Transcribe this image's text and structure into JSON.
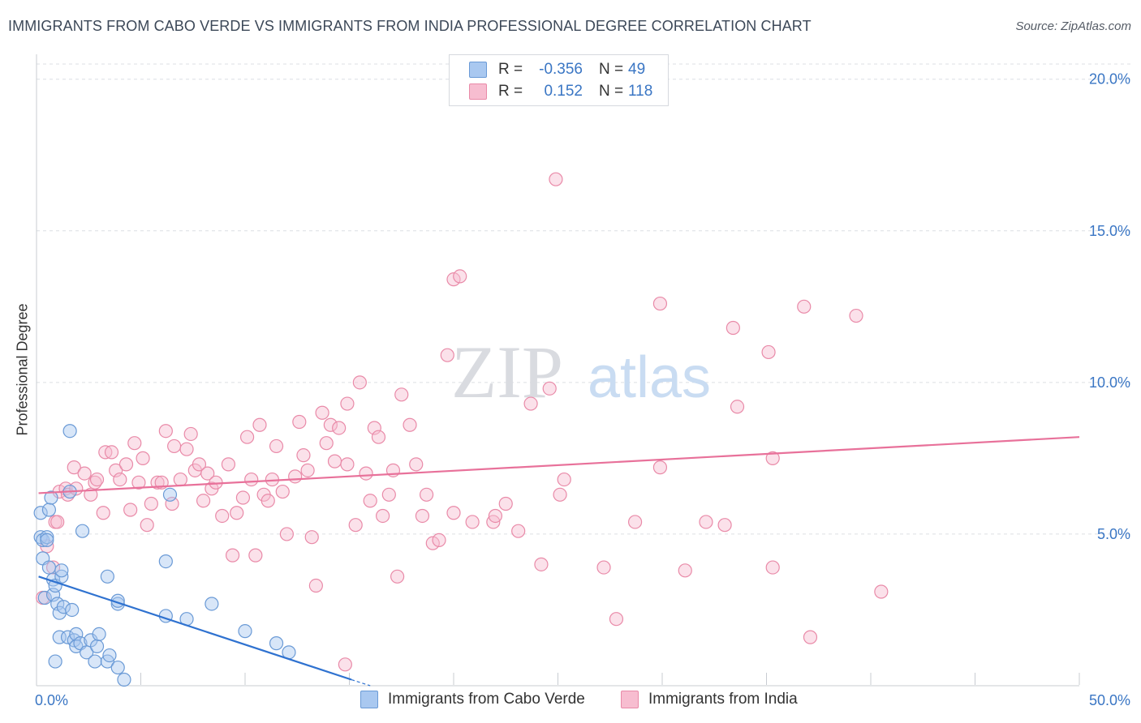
{
  "title": "IMMIGRANTS FROM CABO VERDE VS IMMIGRANTS FROM INDIA PROFESSIONAL DEGREE CORRELATION CHART",
  "source": "Source: ZipAtlas.com",
  "watermark": {
    "zip": "ZIP",
    "atlas": "atlas"
  },
  "legend": {
    "r_label": "R =",
    "n_label": "N =",
    "rows": [
      {
        "r": "-0.356",
        "n": "49",
        "fill": "#a9c8f0",
        "stroke": "#6a9ad6"
      },
      {
        "r": "0.152",
        "n": "118",
        "fill": "#f7bdd0",
        "stroke": "#e98aa8"
      }
    ]
  },
  "chart_data": {
    "type": "scatter",
    "xlabel": "",
    "ylabel": "Professional Degree",
    "xlim": [
      0,
      50
    ],
    "ylim": [
      0,
      20.5
    ],
    "x_tick_labels": [
      "0.0%",
      "50.0%"
    ],
    "y_ticks": [
      5,
      10,
      15,
      20
    ],
    "y_tick_labels": [
      "5.0%",
      "10.0%",
      "15.0%",
      "20.0%"
    ],
    "grid": true,
    "series": [
      {
        "name": "Immigrants from Cabo Verde",
        "color": "#6a9ad6",
        "fill": "#a9c8f0",
        "line_color": "#2f72d0",
        "trend": {
          "x": [
            0.1,
            15.1
          ],
          "y": [
            3.6,
            0.2
          ]
        },
        "trend_ext": {
          "x": [
            15.1,
            16.0
          ],
          "y": [
            0.2,
            0.0
          ]
        },
        "points": [
          [
            0.2,
            5.7
          ],
          [
            0.2,
            4.9
          ],
          [
            0.3,
            4.8
          ],
          [
            0.3,
            4.2
          ],
          [
            0.4,
            2.9
          ],
          [
            0.5,
            4.9
          ],
          [
            0.5,
            4.8
          ],
          [
            0.6,
            3.9
          ],
          [
            0.6,
            5.8
          ],
          [
            0.7,
            6.2
          ],
          [
            0.8,
            3.5
          ],
          [
            0.8,
            3.0
          ],
          [
            0.9,
            3.3
          ],
          [
            0.9,
            0.8
          ],
          [
            1.0,
            2.7
          ],
          [
            1.1,
            2.4
          ],
          [
            1.1,
            1.6
          ],
          [
            1.2,
            3.6
          ],
          [
            1.2,
            3.8
          ],
          [
            1.3,
            2.6
          ],
          [
            1.5,
            1.6
          ],
          [
            1.6,
            6.4
          ],
          [
            1.7,
            2.5
          ],
          [
            1.8,
            1.5
          ],
          [
            1.9,
            1.7
          ],
          [
            1.9,
            1.3
          ],
          [
            2.1,
            1.4
          ],
          [
            2.2,
            5.1
          ],
          [
            2.4,
            1.1
          ],
          [
            2.6,
            1.5
          ],
          [
            2.8,
            0.8
          ],
          [
            2.9,
            1.3
          ],
          [
            3.0,
            1.7
          ],
          [
            3.4,
            0.8
          ],
          [
            3.4,
            3.6
          ],
          [
            3.5,
            1.0
          ],
          [
            3.9,
            2.7
          ],
          [
            3.9,
            2.8
          ],
          [
            3.9,
            0.6
          ],
          [
            4.2,
            0.2
          ],
          [
            1.6,
            8.4
          ],
          [
            6.2,
            4.1
          ],
          [
            6.2,
            2.3
          ],
          [
            6.4,
            6.3
          ],
          [
            7.2,
            2.2
          ],
          [
            8.4,
            2.7
          ],
          [
            10.0,
            1.8
          ],
          [
            11.5,
            1.4
          ],
          [
            12.1,
            1.1
          ]
        ]
      },
      {
        "name": "Immigrants from India",
        "color": "#e98aa8",
        "fill": "#f7bdd0",
        "line_color": "#e8719a",
        "trend": {
          "x": [
            0.1,
            50.0
          ],
          "y": [
            6.35,
            8.2
          ]
        },
        "points": [
          [
            0.3,
            2.9
          ],
          [
            0.5,
            4.6
          ],
          [
            0.8,
            3.9
          ],
          [
            0.9,
            5.4
          ],
          [
            1.0,
            5.4
          ],
          [
            1.1,
            6.4
          ],
          [
            1.4,
            6.5
          ],
          [
            1.5,
            6.3
          ],
          [
            1.8,
            7.2
          ],
          [
            1.9,
            6.5
          ],
          [
            2.3,
            7.0
          ],
          [
            2.6,
            6.3
          ],
          [
            2.8,
            6.7
          ],
          [
            2.9,
            6.8
          ],
          [
            3.2,
            5.7
          ],
          [
            3.3,
            7.7
          ],
          [
            3.6,
            7.7
          ],
          [
            3.8,
            7.1
          ],
          [
            4.0,
            6.8
          ],
          [
            4.3,
            7.3
          ],
          [
            4.5,
            5.8
          ],
          [
            4.7,
            8.0
          ],
          [
            4.9,
            6.7
          ],
          [
            5.1,
            7.5
          ],
          [
            5.3,
            5.3
          ],
          [
            5.5,
            6.0
          ],
          [
            5.8,
            6.7
          ],
          [
            6.0,
            6.7
          ],
          [
            6.2,
            8.4
          ],
          [
            6.5,
            6.0
          ],
          [
            6.6,
            7.9
          ],
          [
            6.9,
            6.8
          ],
          [
            7.2,
            7.8
          ],
          [
            7.4,
            8.3
          ],
          [
            7.6,
            7.1
          ],
          [
            7.8,
            7.3
          ],
          [
            8.0,
            6.1
          ],
          [
            8.2,
            7.0
          ],
          [
            8.4,
            6.5
          ],
          [
            8.6,
            6.7
          ],
          [
            8.9,
            5.6
          ],
          [
            9.2,
            7.3
          ],
          [
            9.4,
            4.3
          ],
          [
            9.6,
            5.7
          ],
          [
            9.9,
            6.2
          ],
          [
            10.1,
            8.2
          ],
          [
            10.3,
            6.8
          ],
          [
            10.5,
            4.3
          ],
          [
            10.7,
            8.6
          ],
          [
            10.9,
            6.3
          ],
          [
            11.1,
            6.1
          ],
          [
            11.3,
            6.8
          ],
          [
            11.5,
            7.9
          ],
          [
            11.8,
            6.4
          ],
          [
            12.0,
            5.0
          ],
          [
            12.4,
            6.9
          ],
          [
            12.6,
            8.7
          ],
          [
            12.8,
            7.6
          ],
          [
            13.0,
            7.1
          ],
          [
            13.2,
            4.9
          ],
          [
            13.4,
            3.3
          ],
          [
            13.7,
            9.0
          ],
          [
            13.9,
            8.0
          ],
          [
            14.1,
            8.6
          ],
          [
            14.3,
            7.4
          ],
          [
            14.5,
            8.5
          ],
          [
            14.9,
            7.3
          ],
          [
            14.9,
            9.3
          ],
          [
            15.3,
            5.3
          ],
          [
            15.5,
            10.0
          ],
          [
            15.8,
            7.0
          ],
          [
            16.0,
            6.1
          ],
          [
            16.2,
            8.5
          ],
          [
            16.4,
            8.2
          ],
          [
            16.6,
            5.6
          ],
          [
            16.9,
            6.3
          ],
          [
            17.1,
            7.1
          ],
          [
            17.3,
            3.6
          ],
          [
            17.5,
            9.6
          ],
          [
            17.9,
            8.6
          ],
          [
            18.2,
            7.3
          ],
          [
            18.5,
            5.6
          ],
          [
            18.7,
            6.3
          ],
          [
            19.0,
            4.7
          ],
          [
            19.3,
            4.8
          ],
          [
            19.7,
            10.9
          ],
          [
            20.0,
            13.4
          ],
          [
            20.3,
            13.5
          ],
          [
            20.0,
            5.7
          ],
          [
            20.9,
            5.4
          ],
          [
            21.9,
            5.4
          ],
          [
            22.0,
            5.6
          ],
          [
            22.5,
            6.0
          ],
          [
            23.1,
            5.1
          ],
          [
            23.7,
            9.3
          ],
          [
            24.2,
            4.0
          ],
          [
            24.6,
            9.8
          ],
          [
            24.9,
            16.7
          ],
          [
            25.1,
            6.3
          ],
          [
            25.3,
            6.8
          ],
          [
            27.2,
            3.9
          ],
          [
            27.8,
            2.2
          ],
          [
            28.7,
            5.4
          ],
          [
            29.9,
            7.2
          ],
          [
            29.9,
            12.6
          ],
          [
            31.1,
            3.8
          ],
          [
            32.1,
            5.4
          ],
          [
            33.0,
            5.3
          ],
          [
            33.4,
            11.8
          ],
          [
            33.6,
            9.2
          ],
          [
            35.1,
            11.0
          ],
          [
            35.3,
            7.5
          ],
          [
            35.3,
            3.9
          ],
          [
            36.8,
            12.5
          ],
          [
            37.1,
            1.6
          ],
          [
            39.3,
            12.2
          ],
          [
            40.5,
            3.1
          ],
          [
            14.8,
            0.7
          ]
        ]
      }
    ]
  }
}
